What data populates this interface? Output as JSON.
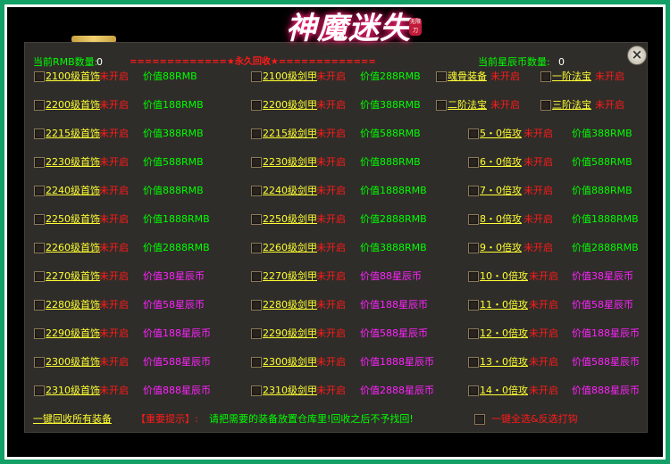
{
  "logo": {
    "title": "神魔迷失",
    "sub": "无限刀"
  },
  "header": {
    "rmb_label": "当前RMB数量:",
    "rmb_value": "0",
    "banner": "=============★永久回收★=============",
    "star_label": "当前星辰币数量:",
    "star_value": "0",
    "close": "×"
  },
  "status": "未开启",
  "rows": [
    {
      "c1": "2100级首饰",
      "v1": "价值88RMB",
      "c2": "2100级剑甲",
      "v2": "价值288RMB",
      "c3": "魂骨装备",
      "c4": "一阶法宝"
    },
    {
      "c1": "2200级首饰",
      "v1": "价值188RMB",
      "c2": "2200级剑甲",
      "v2": "价值388RMB",
      "c3": "二阶法宝",
      "c4": "三阶法宝"
    },
    {
      "c1": "2215级首饰",
      "v1": "价值388RMB",
      "c2": "2215级剑甲",
      "v2": "价值588RMB",
      "c3": "5・0倍攻",
      "v3": "价值388RMB"
    },
    {
      "c1": "2230级首饰",
      "v1": "价值588RMB",
      "c2": "2230级剑甲",
      "v2": "价值888RMB",
      "c3": "6・0倍攻",
      "v3": "价值588RMB"
    },
    {
      "c1": "2240级首饰",
      "v1": "价值888RMB",
      "c2": "2240级剑甲",
      "v2": "价值1888RMB",
      "c3": "7・0倍攻",
      "v3": "价值888RMB"
    },
    {
      "c1": "2250级首饰",
      "v1": "价值1888RMB",
      "c2": "2250级剑甲",
      "v2": "价值2888RMB",
      "c3": "8・0倍攻",
      "v3": "价值1888RMB"
    },
    {
      "c1": "2260级首饰",
      "v1": "价值2888RMB",
      "c2": "2260级剑甲",
      "v2": "价值3888RMB",
      "c3": "9・0倍攻",
      "v3": "价值2888RMB"
    },
    {
      "c1": "2270级首饰",
      "v1": "价值38星辰币",
      "c2": "2270级剑甲",
      "v2": "价值88星辰币",
      "c3": "10・0倍攻",
      "v3": "价值38星辰币"
    },
    {
      "c1": "2280级首饰",
      "v1": "价值58星辰币",
      "c2": "2280级剑甲",
      "v2": "价值188星辰币",
      "c3": "11・0倍攻",
      "v3": "价值58星辰币"
    },
    {
      "c1": "2290级首饰",
      "v1": "价值188星辰币",
      "c2": "2290级剑甲",
      "v2": "价值588星辰币",
      "c3": "12・0倍攻",
      "v3": "价值188星辰币"
    },
    {
      "c1": "2300级首饰",
      "v1": "价值588星辰币",
      "c2": "2300级剑甲",
      "v2": "价值1888星辰币",
      "c3": "13・0倍攻",
      "v3": "价值588星辰币"
    },
    {
      "c1": "2310级首饰",
      "v1": "价值888星辰币",
      "c2": "2310级剑甲",
      "v2": "价值2888星辰币",
      "c3": "14・0倍攻",
      "v3": "价值888星辰币"
    }
  ],
  "footer": {
    "recycle_all": "一键回收所有装备",
    "tip_label": "【重要提示】:",
    "tip_text": "请把需要的装备放置仓库里!回收之后不予找回!",
    "select_all": "一键全选&反选打钩"
  }
}
